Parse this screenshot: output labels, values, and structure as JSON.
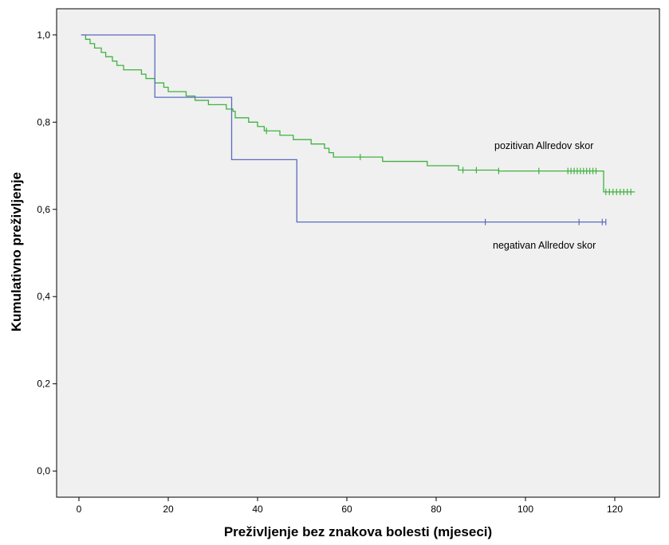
{
  "chart_data": {
    "type": "line",
    "title": "",
    "xlabel": "Preživljenje bez znakova bolesti (mjeseci)",
    "ylabel": "Kumulativno preživljenje",
    "xlim": [
      -5,
      130
    ],
    "ylim": [
      -0.06,
      1.06
    ],
    "xticks": [
      0,
      20,
      40,
      60,
      80,
      100,
      120
    ],
    "xtick_labels": [
      "0",
      "20",
      "40",
      "60",
      "80",
      "100",
      "120"
    ],
    "yticks": [
      0.0,
      0.2,
      0.4,
      0.6,
      0.8,
      1.0
    ],
    "ytick_labels": [
      "0,0",
      "0,2",
      "0,4",
      "0,6",
      "0,8",
      "1,0"
    ],
    "grid": false,
    "background": "#f0f0f0",
    "series": [
      {
        "name": "pozitivan Allredov skor",
        "color": "#3fb23f",
        "steps": [
          [
            0.5,
            1.0
          ],
          [
            1.5,
            0.99
          ],
          [
            2.5,
            0.98
          ],
          [
            3.5,
            0.97
          ],
          [
            5,
            0.96
          ],
          [
            6,
            0.95
          ],
          [
            7.5,
            0.94
          ],
          [
            8.5,
            0.93
          ],
          [
            10,
            0.92
          ],
          [
            14,
            0.91
          ],
          [
            15,
            0.9
          ],
          [
            17,
            0.89
          ],
          [
            19,
            0.88
          ],
          [
            20,
            0.87
          ],
          [
            24,
            0.86
          ],
          [
            26,
            0.85
          ],
          [
            29,
            0.84
          ],
          [
            33,
            0.83
          ],
          [
            34.5,
            0.825
          ],
          [
            35,
            0.81
          ],
          [
            38,
            0.8
          ],
          [
            40,
            0.79
          ],
          [
            41.5,
            0.78
          ],
          [
            45,
            0.77
          ],
          [
            48,
            0.76
          ],
          [
            52,
            0.75
          ],
          [
            55,
            0.74
          ],
          [
            56,
            0.73
          ],
          [
            57,
            0.72
          ],
          [
            68,
            0.71
          ],
          [
            78,
            0.7
          ],
          [
            85,
            0.69
          ],
          [
            94,
            0.688
          ],
          [
            117.5,
            0.64
          ],
          [
            124.5,
            0.64
          ]
        ],
        "censored": [
          42,
          63,
          86,
          89,
          94,
          103,
          109.5,
          110.2,
          110.9,
          111.6,
          112.3,
          113.0,
          113.7,
          114.4,
          115.1,
          115.8,
          118,
          118.8,
          119.6,
          120.4,
          121.2,
          122,
          122.8,
          123.6
        ]
      },
      {
        "name": "negativan Allredov skor",
        "color": "#5b6bbf",
        "steps": [
          [
            0.5,
            1.0
          ],
          [
            17,
            0.857
          ],
          [
            34.2,
            0.714
          ],
          [
            48.8,
            0.571
          ],
          [
            118,
            0.571
          ]
        ],
        "censored": [
          91,
          112,
          117.2,
          118
        ]
      }
    ],
    "annotations": [
      {
        "text": "pozitivan Allredov skor"
      },
      {
        "text": "negativan Allredov skor"
      }
    ]
  }
}
